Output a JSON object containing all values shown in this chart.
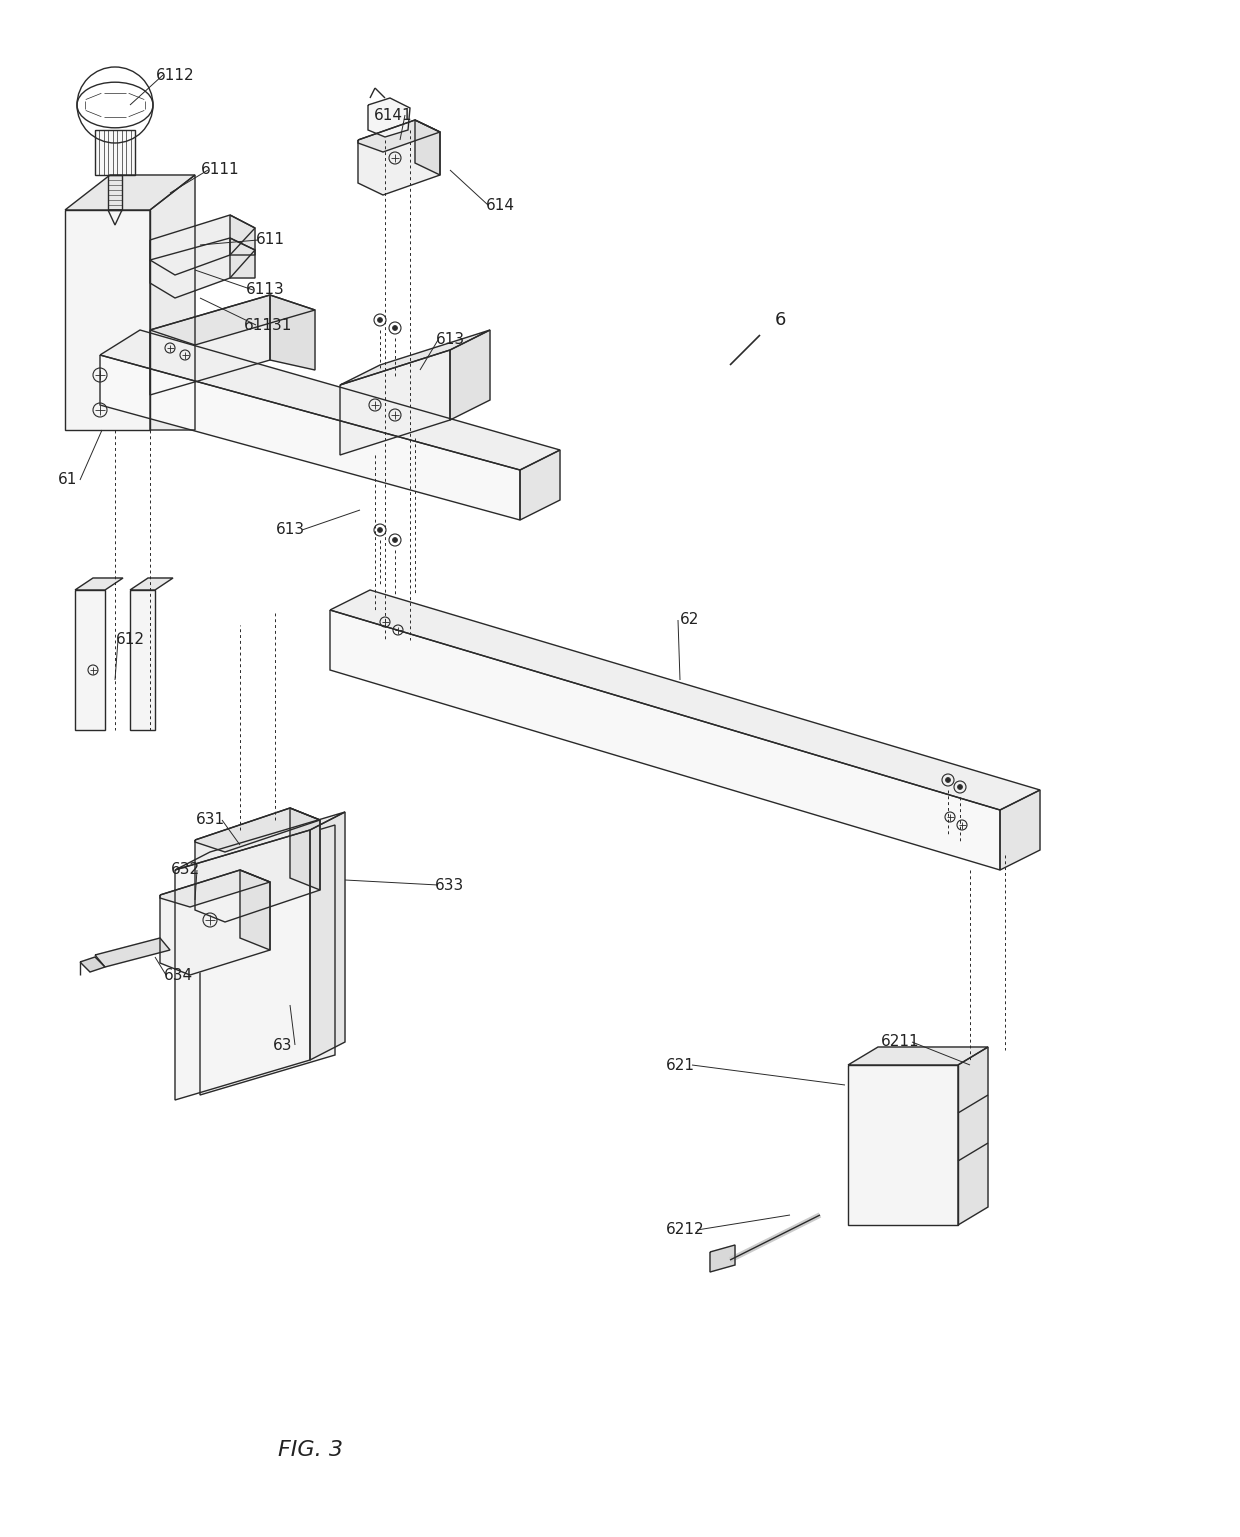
{
  "title": "FIG. 3",
  "background_color": "#ffffff",
  "line_color": "#2a2a2a",
  "text_color": "#222222",
  "label_fontsize": 11,
  "title_fontsize": 16,
  "lw_main": 1.0,
  "lw_thin": 0.6,
  "lw_dashed": 0.7,
  "fig_width": 12.4,
  "fig_height": 15.37,
  "dpi": 100
}
